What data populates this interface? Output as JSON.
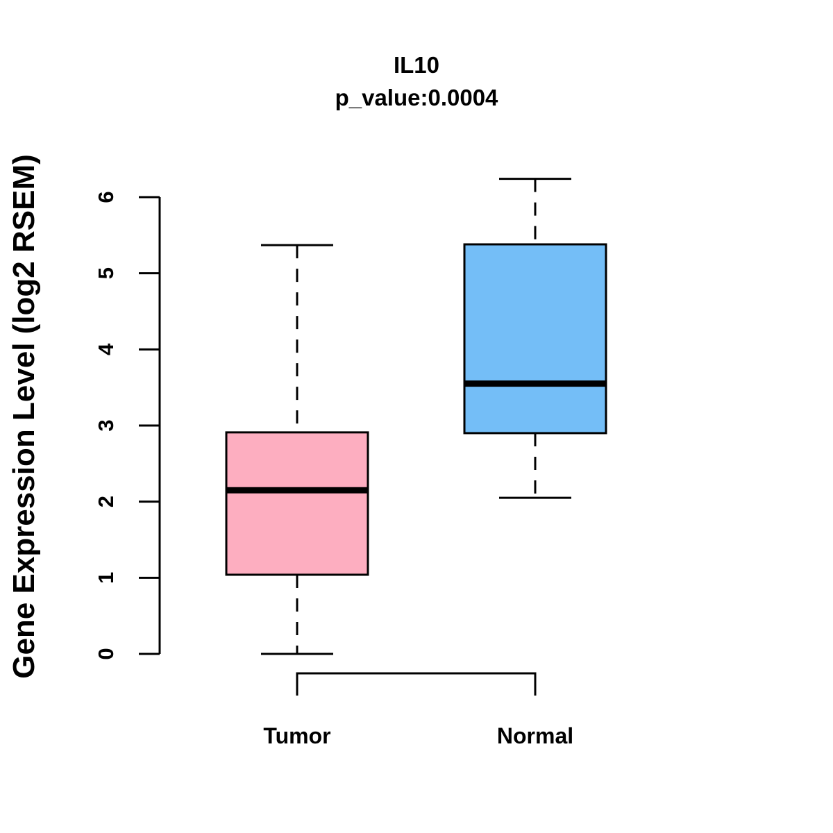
{
  "chart_data": {
    "type": "box",
    "title": "IL10",
    "subtitle": "p_value:0.0004",
    "ylabel": "Gene Expression Level (log2 RSEM)",
    "xlabel": "",
    "ylim": [
      0,
      6
    ],
    "yticks": [
      0,
      1,
      2,
      3,
      4,
      5,
      6
    ],
    "grid": false,
    "legend_position": "none",
    "categories": [
      "Tumor",
      "Normal"
    ],
    "series": [
      {
        "name": "Tumor",
        "whisker_low": 0.0,
        "q1": 1.04,
        "median": 2.15,
        "q3": 2.91,
        "whisker_high": 5.37,
        "fill": "#FDAEC0"
      },
      {
        "name": "Normal",
        "whisker_low": 2.05,
        "q1": 2.9,
        "median": 3.55,
        "q3": 5.38,
        "whisker_high": 6.24,
        "fill": "#74BEF7"
      }
    ],
    "colors": {
      "stroke": "#000000",
      "median": "#000000",
      "background": "#ffffff"
    }
  }
}
